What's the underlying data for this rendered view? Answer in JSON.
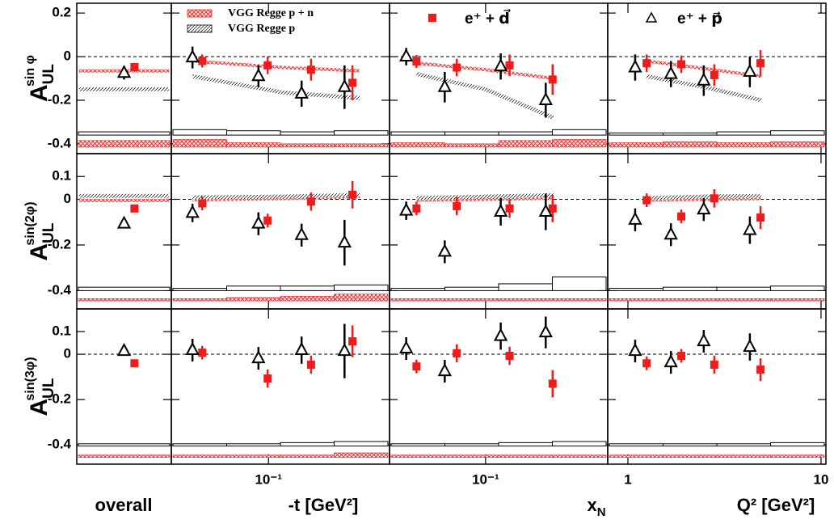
{
  "chart_data": {
    "type": "scatter",
    "series": [
      {
        "name": "e⁺ + d⃗",
        "color": "#ee1c1c"
      },
      {
        "name": "e⁺ + p⃗",
        "color": "#000000"
      }
    ],
    "models": [
      {
        "name": "VGG Regge   p + n",
        "color": "#ee1c1c"
      },
      {
        "name": "VGG Regge   p",
        "color": "#000000"
      }
    ],
    "columns": [
      {
        "xlabel": "overall"
      },
      {
        "xlabel": "-t [GeV²]",
        "log": true,
        "xlim": [
          0.031,
          0.43
        ],
        "xticks": [
          {
            "value": 0.1,
            "label": "10⁻¹"
          }
        ],
        "series_x": [
          [
            0.045,
            0.099,
            0.167,
            0.275
          ],
          [
            0.04,
            0.0886,
            0.149,
            0.25
          ]
        ],
        "model_x": [
          0.04,
          0.12,
          0.3
        ]
      },
      {
        "xlabel": "x",
        "xlabel_sub": "N",
        "log": true,
        "xlim": [
          0.035,
          0.38
        ],
        "xticks": [
          {
            "value": 0.1,
            "label": "10⁻¹"
          }
        ],
        "series_x": [
          [
            0.047,
            0.073,
            0.13,
            0.208
          ],
          [
            0.042,
            0.064,
            0.118,
            0.193
          ]
        ],
        "model_x": [
          0.047,
          0.1,
          0.21
        ]
      },
      {
        "xlabel": "Q² [GeV²]",
        "log": true,
        "xlim": [
          0.786,
          10.6
        ],
        "xticks": [
          1,
          10
        ],
        "series_x": [
          [
            1.25,
            1.89,
            2.8,
            4.86
          ],
          [
            1.09,
            1.67,
            2.47,
            4.28
          ]
        ],
        "model_x": [
          1.25,
          2.5,
          4.9
        ]
      }
    ],
    "rows": [
      {
        "ylabel": "A",
        "ylabel_sub": "UL",
        "ylabel_sup": "sin φ",
        "ylim": [
          -0.445,
          0.245
        ],
        "yticks": [
          0.2,
          0,
          -0.2,
          -0.4
        ],
        "syst_base": [
          -0.415,
          -0.36
        ],
        "panels": [
          {
            "series": [
              {
                "values": [
                  -0.048
                ],
                "errors": [
                  0.01
                ]
              },
              {
                "values": [
                  -0.075
                ],
                "errors": [
                  0.03
                ]
              }
            ],
            "models": [
              {
                "values": [
                  -0.065
                ]
              },
              {
                "values": [
                  -0.15
                ]
              }
            ],
            "syst": [
              [
                0.03
              ],
              [
                0.015
              ]
            ]
          },
          {
            "series": [
              {
                "values": [
                  -0.02,
                  -0.04,
                  -0.06,
                  -0.12
                ],
                "errors": [
                  0.03,
                  0.04,
                  0.05,
                  0.08
                ]
              },
              {
                "values": [
                  -0.004,
                  -0.09,
                  -0.17,
                  -0.14
                ],
                "errors": [
                  0.05,
                  0.05,
                  0.06,
                  0.1
                ]
              }
            ],
            "models": [
              {
                "values": [
                  -0.02,
                  -0.05,
                  -0.065
                ]
              },
              {
                "values": [
                  -0.09,
                  -0.165,
                  -0.19
                ]
              }
            ],
            "syst": [
              [
                0.035,
                0.02,
                0.015,
                0.015
              ],
              [
                0.025,
                0.02,
                0.015,
                0.02
              ]
            ]
          },
          {
            "series": [
              {
                "values": [
                  -0.022,
                  -0.05,
                  -0.04,
                  -0.105
                ],
                "errors": [
                  0.03,
                  0.04,
                  0.05,
                  0.07
                ]
              },
              {
                "values": [
                  0,
                  -0.14,
                  -0.045,
                  -0.2
                ],
                "errors": [
                  0.04,
                  0.07,
                  0.06,
                  0.08
                ]
              }
            ],
            "models": [
              {
                "values": [
                  -0.03,
                  -0.06,
                  -0.1
                ]
              },
              {
                "values": [
                  -0.08,
                  -0.15,
                  -0.28
                ]
              }
            ],
            "syst": [
              [
                0.02,
                0.015,
                0.03,
                0.035
              ],
              [
                0.015,
                0.015,
                0.015,
                0.025
              ]
            ]
          },
          {
            "series": [
              {
                "values": [
                  -0.03,
                  -0.035,
                  -0.085,
                  -0.03
                ],
                "errors": [
                  0.04,
                  0.04,
                  0.05,
                  0.06
                ]
              },
              {
                "values": [
                  -0.05,
                  -0.08,
                  -0.11,
                  -0.07
                ],
                "errors": [
                  0.06,
                  0.06,
                  0.07,
                  0.07
                ]
              }
            ],
            "models": [
              {
                "values": [
                  -0.02,
                  -0.055,
                  -0.09
                ]
              },
              {
                "values": [
                  -0.09,
                  -0.14,
                  -0.2
                ]
              }
            ],
            "syst": [
              [
                0.02,
                0.025,
                0.02,
                0.025
              ],
              [
                0.01,
                0.01,
                0.015,
                0.02
              ]
            ]
          }
        ]
      },
      {
        "ylabel": "A",
        "ylabel_sub": "UL",
        "ylabel_sup": "sin(2φ)",
        "ylim": [
          -0.48,
          0.2
        ],
        "yticks": [
          0.1,
          0,
          -0.2,
          -0.4
        ],
        "syst_base": [
          -0.445,
          -0.4
        ],
        "panels": [
          {
            "series": [
              {
                "values": [
                  -0.04
                ],
                "errors": [
                  0.01
                ]
              },
              {
                "values": [
                  -0.107
                ],
                "errors": [
                  0.02
                ]
              }
            ],
            "models": [
              {
                "values": [
                  -0.005
                ]
              },
              {
                "values": [
                  0.015
                ]
              }
            ],
            "syst": [
              [
                0.01
              ],
              [
                0.015
              ]
            ]
          },
          {
            "series": [
              {
                "values": [
                  -0.018,
                  -0.093,
                  -0.01,
                  0.02
                ],
                "errors": [
                  0.03,
                  0.03,
                  0.04,
                  0.06
                ]
              },
              {
                "values": [
                  -0.06,
                  -0.107,
                  -0.157,
                  -0.19
                ],
                "errors": [
                  0.04,
                  0.05,
                  0.05,
                  0.1
                ]
              }
            ],
            "models": [
              {
                "values": [
                  -0.002,
                  0.003,
                  0.012
                ]
              },
              {
                "values": [
                  0.008,
                  0.012,
                  0.02
                ]
              }
            ],
            "syst": [
              [
                0.01,
                0.015,
                0.02,
                0.03
              ],
              [
                0.01,
                0.02,
                0.02,
                0.025
              ]
            ]
          },
          {
            "series": [
              {
                "values": [
                  -0.04,
                  -0.03,
                  -0.04,
                  -0.04
                ],
                "errors": [
                  0.03,
                  0.04,
                  0.04,
                  0.06
                ]
              },
              {
                "values": [
                  -0.05,
                  -0.23,
                  -0.055,
                  -0.055
                ],
                "errors": [
                  0.04,
                  0.05,
                  0.06,
                  0.08
                ]
              }
            ],
            "models": [
              {
                "values": [
                  -0.003,
                  0,
                  0.005
                ]
              },
              {
                "values": [
                  0.005,
                  0.012,
                  0.018
                ]
              }
            ],
            "syst": [
              [
                0.01,
                0.01,
                0.01,
                0.01
              ],
              [
                0.01,
                0.015,
                0.03,
                0.06
              ]
            ]
          },
          {
            "series": [
              {
                "values": [
                  -0.004,
                  -0.075,
                  0.004,
                  -0.08
                ],
                "errors": [
                  0.03,
                  0.03,
                  0.04,
                  0.05
                ]
              },
              {
                "values": [
                  -0.09,
                  -0.155,
                  -0.045,
                  -0.135
                ],
                "errors": [
                  0.05,
                  0.05,
                  0.05,
                  0.06
                ]
              }
            ],
            "models": [
              {
                "values": [
                  -0.003,
                  0,
                  0.003
                ]
              },
              {
                "values": [
                  0.005,
                  0.012,
                  0.015
                ]
              }
            ],
            "syst": [
              [
                0.01,
                0.01,
                0.01,
                0.01
              ],
              [
                0.01,
                0.015,
                0.015,
                0.02
              ]
            ]
          }
        ]
      },
      {
        "ylabel": "A",
        "ylabel_sub": "UL",
        "ylabel_sup": "sin(3φ)",
        "ylim": [
          -0.485,
          0.2
        ],
        "yticks": [
          0.1,
          0,
          -0.2,
          -0.4
        ],
        "syst_base": [
          -0.455,
          -0.405
        ],
        "panels": [
          {
            "series": [
              {
                "values": [
                  -0.04
                ],
                "errors": [
                  0.01
                ]
              },
              {
                "values": [
                  0.014
                ],
                "errors": [
                  0.015
                ]
              }
            ],
            "syst": [
              [
                0.01
              ],
              [
                0.01
              ]
            ]
          },
          {
            "series": [
              {
                "values": [
                  0.007,
                  -0.107,
                  -0.046,
                  0.057
                ],
                "errors": [
                  0.03,
                  0.04,
                  0.04,
                  0.07
                ]
              },
              {
                "values": [
                  0.018,
                  -0.018,
                  0.018,
                  0.014
                ],
                "errors": [
                  0.05,
                  0.05,
                  0.06,
                  0.12
                ]
              }
            ],
            "syst": [
              [
                0.01,
                0.01,
                0.01,
                0.02
              ],
              [
                0.01,
                0.01,
                0.015,
                0.02
              ]
            ]
          },
          {
            "series": [
              {
                "values": [
                  -0.054,
                  0.004,
                  -0.007,
                  -0.13
                ],
                "errors": [
                  0.03,
                  0.04,
                  0.04,
                  0.06
                ]
              },
              {
                "values": [
                  0.025,
                  -0.075,
                  0.08,
                  0.096
                ],
                "errors": [
                  0.05,
                  0.05,
                  0.06,
                  0.07
                ]
              }
            ],
            "syst": [
              [
                0.01,
                0.01,
                0.01,
                0.01
              ],
              [
                0.01,
                0.01,
                0.015,
                0.02
              ]
            ]
          },
          {
            "series": [
              {
                "values": [
                  -0.04,
                  -0.007,
                  -0.046,
                  -0.068
                ],
                "errors": [
                  0.03,
                  0.03,
                  0.04,
                  0.05
                ]
              },
              {
                "values": [
                  0.014,
                  -0.036,
                  0.057,
                  0.032
                ],
                "errors": [
                  0.05,
                  0.05,
                  0.05,
                  0.06
                ]
              }
            ],
            "syst": [
              [
                0.01,
                0.01,
                0.01,
                0.01
              ],
              [
                0.01,
                0.01,
                0.01,
                0.015
              ]
            ]
          }
        ]
      }
    ]
  }
}
